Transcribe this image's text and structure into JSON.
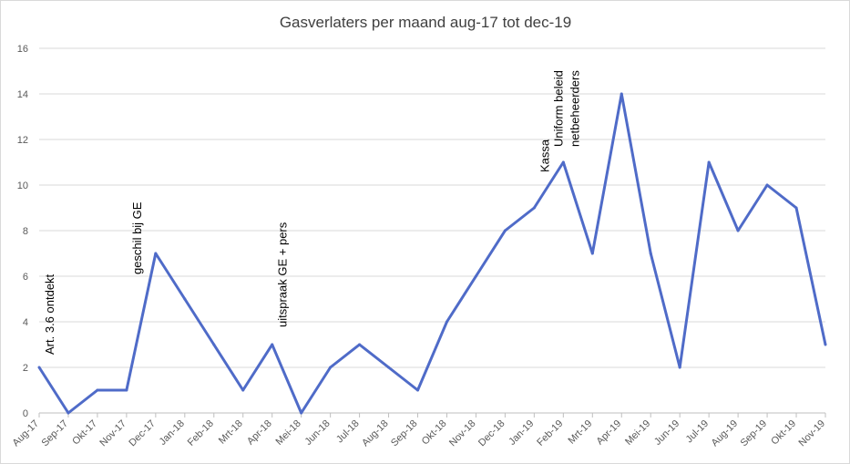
{
  "chart_data": {
    "type": "line",
    "title": "Gasverlaters per maand aug-17 tot dec-19",
    "xlabel": "",
    "ylabel": "",
    "ylim": [
      0,
      16
    ],
    "yticks": [
      0,
      2,
      4,
      6,
      8,
      10,
      12,
      14,
      16
    ],
    "grid": true,
    "legend": "none",
    "categories": [
      "Aug-17",
      "Sep-17",
      "Okt-17",
      "Nov-17",
      "Dec-17",
      "Jan-18",
      "Feb-18",
      "Mrt-18",
      "Apr-18",
      "Mei-18",
      "Jun-18",
      "Jul-18",
      "Aug-18",
      "Sep-18",
      "Okt-18",
      "Nov-18",
      "Dec-18",
      "Jan-19",
      "Feb-19",
      "Mrt-19",
      "Apr-19",
      "Mei-19",
      "Jun-19",
      "Jul-19",
      "Aug-19",
      "Sep-19",
      "Okt-19",
      "Nov-19"
    ],
    "series": [
      {
        "name": "Gasverlaters",
        "color": "#4f6bc8",
        "values": [
          2,
          0,
          1,
          1,
          7,
          5,
          3,
          1,
          3,
          0,
          2,
          3,
          2,
          1,
          4,
          6,
          8,
          9,
          11,
          7,
          14,
          7,
          2,
          11,
          8,
          10,
          9,
          3
        ]
      }
    ],
    "annotations": [
      {
        "category": "Aug-17",
        "lines": [
          "Art. 3.6 ontdekt"
        ]
      },
      {
        "category": "Nov-17",
        "lines": [
          "geschil bij GE"
        ]
      },
      {
        "category": "Apr-18",
        "lines": [
          "uitspraak GE + pers"
        ]
      },
      {
        "category": "Jan-19",
        "lines": [
          "Kassa"
        ]
      },
      {
        "category": "Feb-19",
        "lines": [
          "Uniform beleid",
          "netbeheerders"
        ]
      }
    ]
  }
}
